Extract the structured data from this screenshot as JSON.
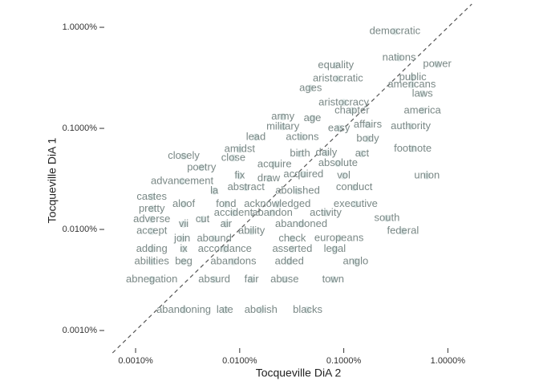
{
  "chart_data": {
    "type": "scatter",
    "x_label": "Tocqueville DiA 2",
    "y_label": "Tocqueville DiA 1",
    "log_x": true,
    "log_y": true,
    "diagonal": true,
    "grid": false,
    "color": "#5b8c88",
    "label_color": "#7a8886",
    "xlim": [
      0.0005,
      2.5
    ],
    "ylim": [
      0.0006,
      1.7
    ],
    "xticks": [
      {
        "value": 0.001,
        "label": "0.0010%"
      },
      {
        "value": 0.01,
        "label": "0.0100%"
      },
      {
        "value": 0.1,
        "label": "0.1000%"
      },
      {
        "value": 1,
        "label": "1.0000%"
      }
    ],
    "yticks": [
      {
        "value": 0.001,
        "label": "0.0010%"
      },
      {
        "value": 0.01,
        "label": "0.0100%"
      },
      {
        "value": 0.1,
        "label": "0.1000%"
      },
      {
        "value": 1,
        "label": "1.0000%"
      }
    ],
    "labels": [
      "democratic",
      "nations",
      "power",
      "equality",
      "public",
      "aristocratic",
      "ages",
      "americans",
      "laws",
      "aristocracy",
      "chapter",
      "america",
      "army",
      "age",
      "easy",
      "affairs",
      "authority",
      "military",
      "lead",
      "actions",
      "body",
      "footnote",
      "amidst",
      "closely",
      "birth",
      "daily",
      "act",
      "close",
      "poetry",
      "acquire",
      "absolute",
      "union",
      "fix",
      "draw",
      "acquired",
      "vol",
      "advancement",
      "abstract",
      "la",
      "abolished",
      "conduct",
      "castes",
      "aloof",
      "fond",
      "acknowledged",
      "executive",
      "pretty",
      "accident",
      "abandon",
      "activity",
      "adverse",
      "south",
      "vii",
      "cut",
      "air",
      "abandoned",
      "accept",
      "ability",
      "federal",
      "join",
      "abound",
      "check",
      "europeans",
      "adding",
      "ix",
      "accordance",
      "asserted",
      "legal",
      "abilities",
      "beg",
      "abandons",
      "added",
      "anglo",
      "abnegation",
      "absurd",
      "fair",
      "abuse",
      "town",
      "abandoning",
      "late",
      "abolish",
      "blacks"
    ],
    "x": [
      0.31,
      0.34,
      0.79,
      0.084,
      0.46,
      0.088,
      0.048,
      0.45,
      0.57,
      0.1,
      0.12,
      0.57,
      0.026,
      0.05,
      0.09,
      0.17,
      0.44,
      0.026,
      0.0143,
      0.04,
      0.17,
      0.46,
      0.01,
      0.0029,
      0.038,
      0.068,
      0.15,
      0.0087,
      0.0043,
      0.0216,
      0.088,
      0.63,
      0.01,
      0.019,
      0.041,
      0.1,
      0.0028,
      0.0115,
      0.0057,
      0.036,
      0.126,
      0.00143,
      0.0029,
      0.0074,
      0.023,
      0.13,
      0.00143,
      0.0087,
      0.0206,
      0.067,
      0.00143,
      0.26,
      0.0029,
      0.0044,
      0.0074,
      0.039,
      0.00143,
      0.013,
      0.37,
      0.0028,
      0.0057,
      0.032,
      0.09,
      0.00143,
      0.0029,
      0.0072,
      0.032,
      0.082,
      0.00143,
      0.0029,
      0.0087,
      0.03,
      0.13,
      0.00143,
      0.0057,
      0.013,
      0.027,
      0.079,
      0.0029,
      0.0072,
      0.016,
      0.045
    ],
    "y": [
      0.91,
      0.5,
      0.43,
      0.42,
      0.32,
      0.31,
      0.25,
      0.27,
      0.22,
      0.18,
      0.15,
      0.15,
      0.13,
      0.126,
      0.1,
      0.109,
      0.105,
      0.104,
      0.082,
      0.082,
      0.079,
      0.063,
      0.062,
      0.053,
      0.056,
      0.057,
      0.056,
      0.051,
      0.041,
      0.044,
      0.045,
      0.034,
      0.034,
      0.032,
      0.035,
      0.034,
      0.03,
      0.026,
      0.024,
      0.024,
      0.026,
      0.021,
      0.0178,
      0.0178,
      0.0178,
      0.0178,
      0.016,
      0.0146,
      0.0146,
      0.0146,
      0.0126,
      0.0129,
      0.0113,
      0.0126,
      0.0113,
      0.0113,
      0.0096,
      0.0096,
      0.0096,
      0.0081,
      0.0081,
      0.0081,
      0.0082,
      0.0064,
      0.0064,
      0.0064,
      0.0064,
      0.0064,
      0.0048,
      0.0048,
      0.0048,
      0.0048,
      0.0048,
      0.0032,
      0.0032,
      0.0032,
      0.0032,
      0.0032,
      0.0016,
      0.0016,
      0.0016,
      0.0016
    ]
  }
}
